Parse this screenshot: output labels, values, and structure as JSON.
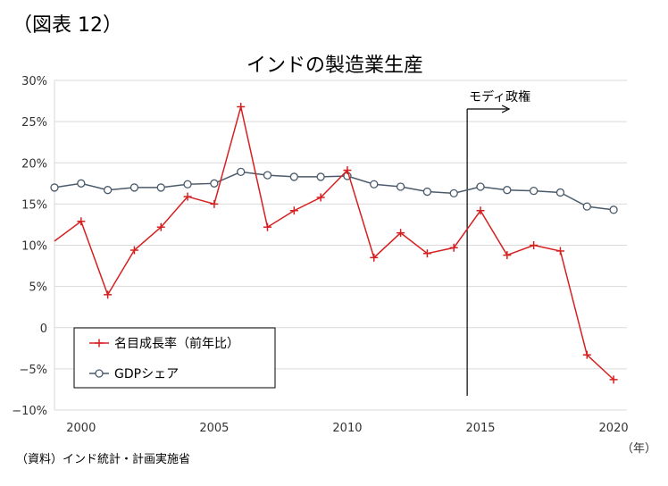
{
  "figure_label": "（図表 12）",
  "source_note": "（資料）インド統計・計画実施省",
  "chart_data": {
    "type": "line",
    "title": "インドの製造業生産",
    "x_unit_label": "（年）",
    "x": [
      1999,
      2000,
      2001,
      2002,
      2003,
      2004,
      2005,
      2006,
      2007,
      2008,
      2009,
      2010,
      2011,
      2012,
      2013,
      2014,
      2015,
      2016,
      2017,
      2018,
      2019,
      2020
    ],
    "x_ticks": [
      2000,
      2005,
      2010,
      2015,
      2020
    ],
    "x_tick_labels": [
      "2000",
      "2005",
      "2010",
      "2015",
      "2020"
    ],
    "xlim": [
      1999,
      2020.5
    ],
    "ylim": [
      -10,
      30
    ],
    "y_ticks": [
      -10,
      -5,
      0,
      5,
      10,
      15,
      20,
      25,
      30
    ],
    "y_tick_labels": [
      "−10%",
      "−5%",
      "0",
      "5%",
      "10%",
      "15%",
      "20%",
      "25%",
      "30%"
    ],
    "grid": true,
    "legend_position": "bottom-left",
    "series": [
      {
        "name": "名目成長率（前年比）",
        "color": "#d62020",
        "marker": "plus",
        "values": [
          10.5,
          12.9,
          4.0,
          9.4,
          12.2,
          15.9,
          15.0,
          26.8,
          12.2,
          14.2,
          15.8,
          19.1,
          8.5,
          11.5,
          9.0,
          9.7,
          14.2,
          8.8,
          10.0,
          9.3,
          -3.3,
          -6.3
        ]
      },
      {
        "name": "GDPシェア",
        "color": "#4a5a6b",
        "marker": "circle",
        "values": [
          17.0,
          17.5,
          16.7,
          17.0,
          17.0,
          17.4,
          17.5,
          18.9,
          18.5,
          18.3,
          18.3,
          18.4,
          17.4,
          17.1,
          16.5,
          16.3,
          17.1,
          16.7,
          16.6,
          16.4,
          14.7,
          14.3
        ]
      }
    ],
    "annotation": {
      "label": "モディ政権",
      "x": 2014.5,
      "arrow": "right"
    }
  }
}
